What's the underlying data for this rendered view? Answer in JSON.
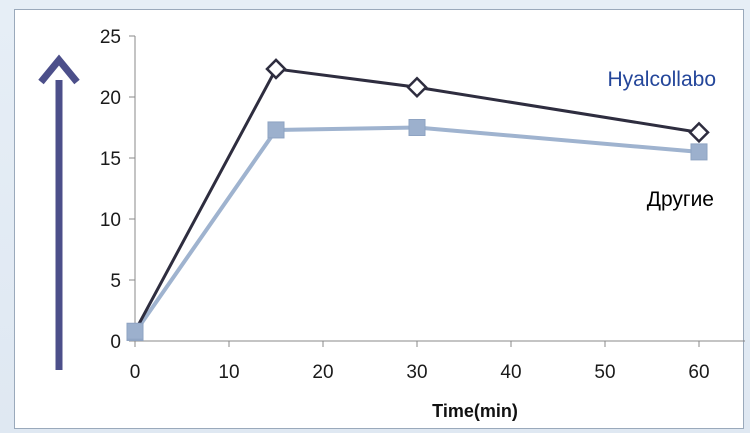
{
  "colors": {
    "hyalcollabo": "#2e2d3f",
    "other": "#9fb3cf",
    "other_marker": "#9cb0cd",
    "hyal_label": "#24469a",
    "arrow": "#4c4f8a",
    "axis": "#888888"
  },
  "chart_data": {
    "type": "line",
    "title": "",
    "xlabel": "Time(min)",
    "ylabel": "",
    "xlim": [
      0,
      60
    ],
    "ylim": [
      0,
      25
    ],
    "x_ticks": [
      "0",
      "10",
      "20",
      "30",
      "40",
      "50",
      "60"
    ],
    "y_ticks": [
      "0",
      "5",
      "10",
      "15",
      "20",
      "25"
    ],
    "grid": false,
    "series": [
      {
        "name": "Hyalcollabo",
        "marker": "diamond-open",
        "x": [
          0,
          15,
          30,
          60
        ],
        "y": [
          0.8,
          22.3,
          20.8,
          17.1
        ]
      },
      {
        "name": "Другие",
        "marker": "square-filled",
        "x": [
          0,
          15,
          30,
          60
        ],
        "y": [
          0.7,
          17.3,
          17.5,
          15.5
        ]
      }
    ]
  }
}
